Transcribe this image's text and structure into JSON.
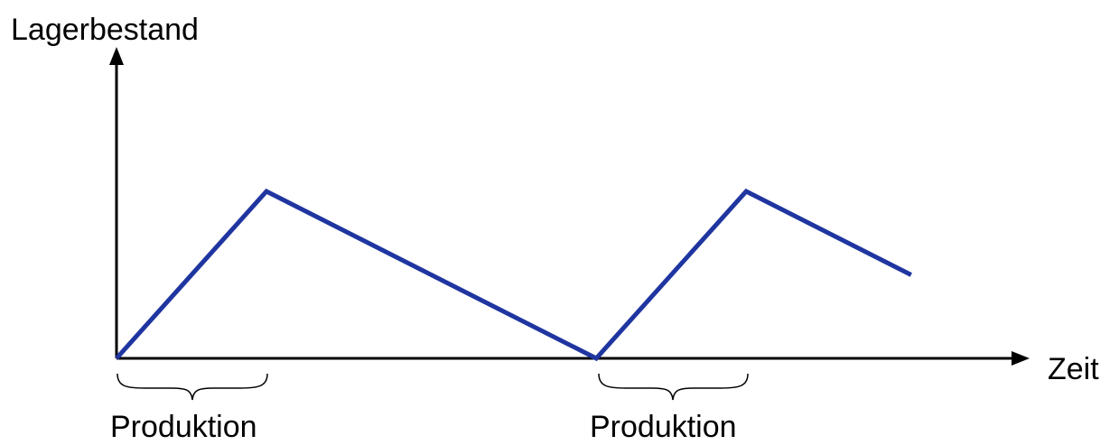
{
  "diagram": {
    "y_axis_label": "Lagerbestand",
    "x_axis_label": "Zeit",
    "phase_labels": [
      "Produktion",
      "Produktion"
    ]
  },
  "chart_data": {
    "type": "line",
    "title": "",
    "xlabel": "Zeit",
    "ylabel": "Lagerbestand",
    "series": [
      {
        "x": [
          0,
          1,
          3.2,
          4.2,
          5.3
        ],
        "y": [
          0,
          1,
          0,
          1,
          0.5
        ]
      }
    ],
    "grid": false
  },
  "colors": {
    "line": "#1f35a0",
    "axis": "#000000",
    "text": "#000000"
  }
}
